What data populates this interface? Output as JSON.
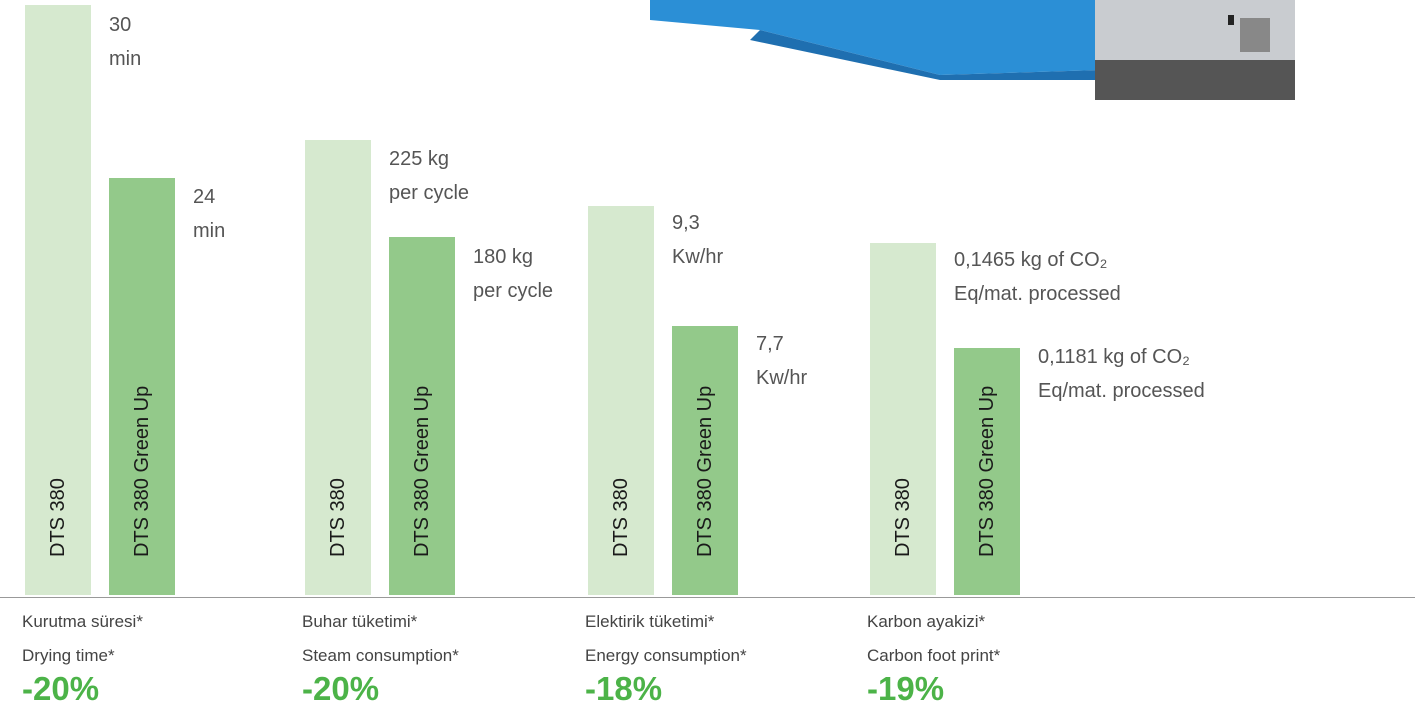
{
  "groups": [
    {
      "bars": [
        {
          "label": "DTS 380",
          "value_lines": [
            "30",
            "min"
          ]
        },
        {
          "label": "DTS 380 Green Up",
          "value_lines": [
            "24",
            "min"
          ]
        }
      ],
      "caption_tr": "Kurutma süresi*",
      "caption_en": "Drying time*",
      "change": "-20%"
    },
    {
      "bars": [
        {
          "label": "DTS 380",
          "value_lines": [
            "225 kg",
            "per cycle"
          ]
        },
        {
          "label": "DTS 380 Green Up",
          "value_lines": [
            "180 kg",
            "per cycle"
          ]
        }
      ],
      "caption_tr": "Buhar tüketimi*",
      "caption_en": "Steam consumption*",
      "change": "-20%"
    },
    {
      "bars": [
        {
          "label": "DTS 380",
          "value_lines": [
            "9,3",
            "Kw/hr"
          ]
        },
        {
          "label": "DTS 380 Green Up",
          "value_lines": [
            "7,7",
            "Kw/hr"
          ]
        }
      ],
      "caption_tr": "Elektirik tüketimi*",
      "caption_en": "Energy consumption*",
      "change": "-18%"
    },
    {
      "bars": [
        {
          "label": "DTS 380",
          "value_lines": [
            "0,1465 kg of CO₂",
            "Eq/mat. processed"
          ]
        },
        {
          "label": "DTS 380 Green Up",
          "value_lines": [
            "0,1181 kg of CO₂",
            "Eq/mat. processed"
          ]
        }
      ],
      "caption_tr": "Karbon ayakizi*",
      "caption_en": "Carbon foot print*",
      "change": "-19%"
    }
  ]
}
